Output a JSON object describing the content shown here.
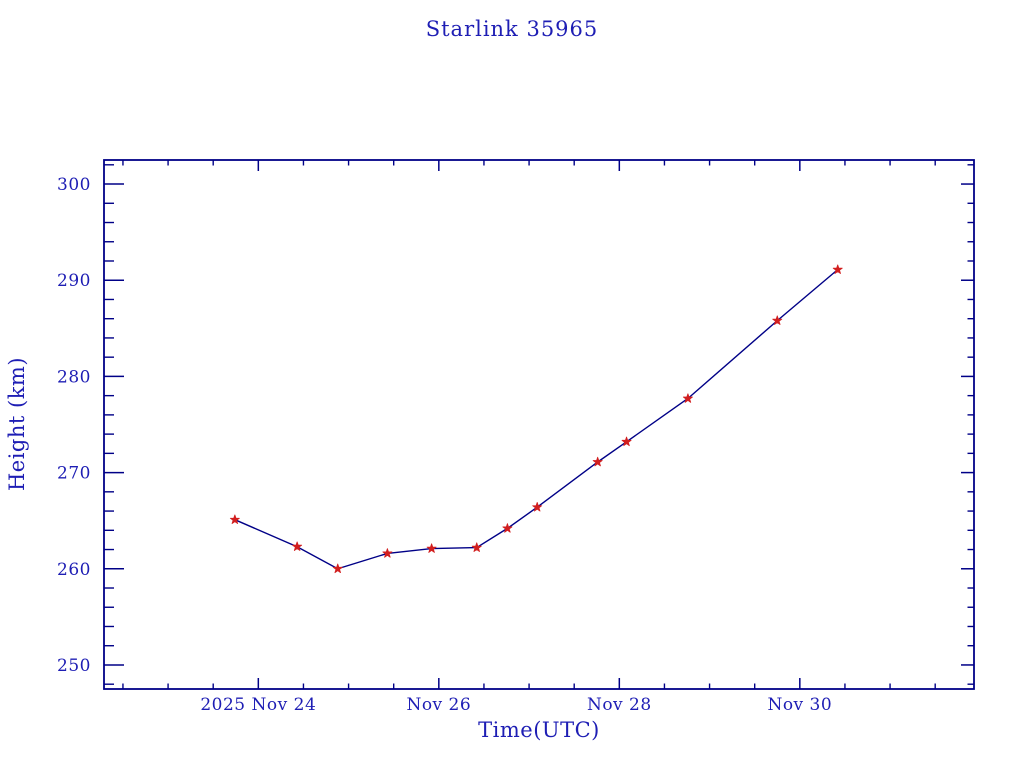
{
  "page": {
    "background": "#ffffff"
  },
  "chart_data": {
    "type": "line",
    "title": "Starlink 35965",
    "xlabel": "Time(UTC)",
    "ylabel": "Height (km)",
    "x_unit": "day of November 2025 (UTC)",
    "x_range": [
      22.29,
      31.93
    ],
    "y_range": [
      247.5,
      302.5
    ],
    "x_ticks_major": [
      {
        "value": 24,
        "label": "2025 Nov 24"
      },
      {
        "value": 26,
        "label": "Nov 26"
      },
      {
        "value": 28,
        "label": "Nov 28"
      },
      {
        "value": 30,
        "label": "Nov 30"
      }
    ],
    "x_minor_step": 0.5,
    "y_ticks_major": [
      250,
      260,
      270,
      280,
      290,
      300
    ],
    "y_minor_step": 2,
    "grid": false,
    "legend": "none",
    "series": [
      {
        "name": "height",
        "marker": "star",
        "x": [
          23.74,
          24.43,
          24.88,
          25.43,
          25.92,
          26.42,
          26.76,
          27.09,
          27.76,
          28.08,
          28.76,
          29.75,
          30.42
        ],
        "y": [
          265.1,
          262.3,
          260.0,
          261.6,
          262.1,
          262.2,
          264.2,
          266.4,
          271.1,
          273.2,
          277.7,
          285.8,
          291.1
        ]
      }
    ]
  },
  "colors": {
    "background": "#ffffff",
    "frame": "#000087",
    "line": "#000087",
    "marker": "#d21f1f",
    "text": "#1e1eb4"
  }
}
